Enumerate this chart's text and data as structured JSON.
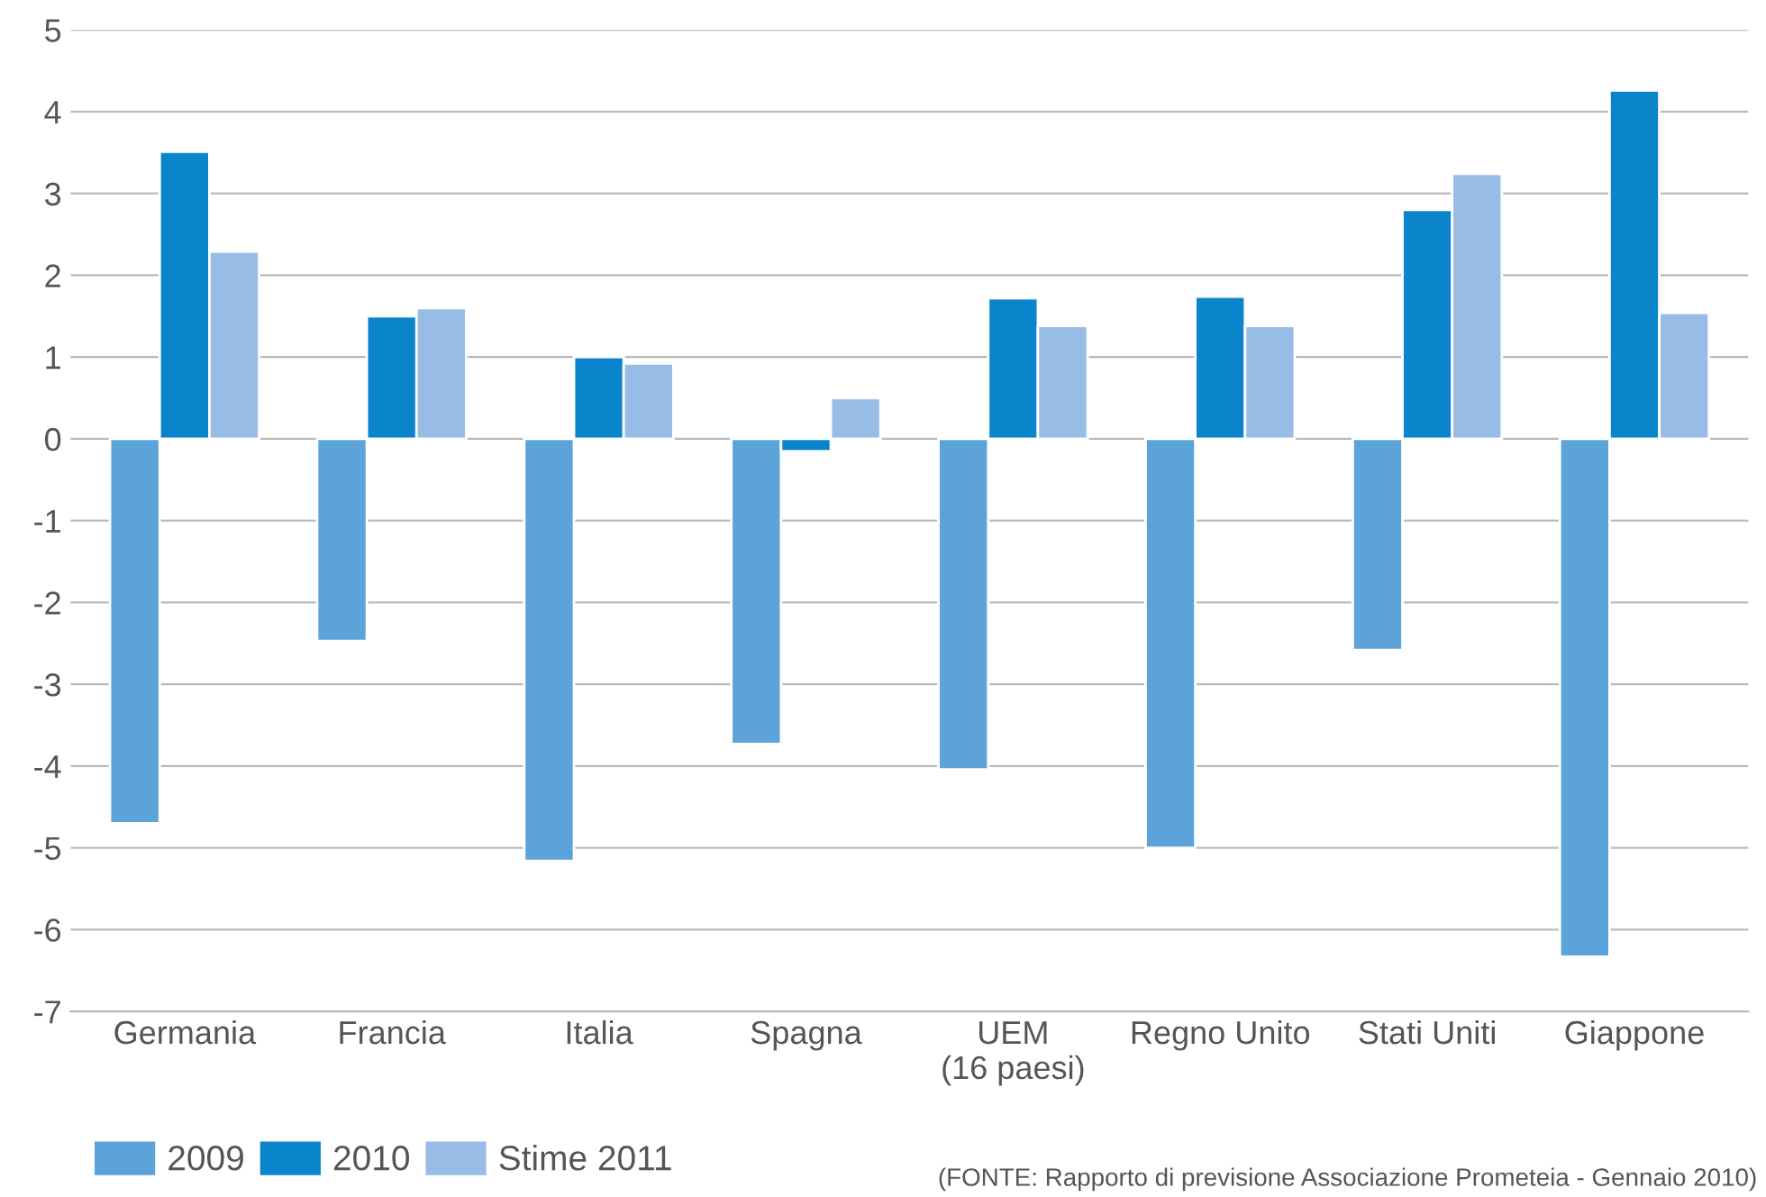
{
  "chart_data": {
    "type": "bar",
    "categories": [
      "Germania",
      "Francia",
      "Italia",
      "Spagna",
      "UEM\n(16 paesi)",
      "Regno Unito",
      "Stati Uniti",
      "Giappone"
    ],
    "series": [
      {
        "name": "2009",
        "color": "#5ba3d9",
        "values": [
          -4.7,
          -2.47,
          -5.16,
          -3.73,
          -4.04,
          -5.0,
          -2.58,
          -6.33
        ]
      },
      {
        "name": "2010",
        "color": "#0a85cc",
        "values": [
          3.51,
          1.5,
          1.0,
          -0.15,
          1.72,
          1.74,
          2.8,
          4.26
        ]
      },
      {
        "name": "Stime 2011",
        "color": "#97bde6",
        "values": [
          2.29,
          1.6,
          0.92,
          0.5,
          1.38,
          1.38,
          3.24,
          1.54
        ]
      }
    ],
    "ylim": [
      -7,
      5
    ],
    "yticks": [
      -7,
      -6,
      -5,
      -4,
      -3,
      -2,
      -1,
      0,
      1,
      2,
      3,
      4,
      5
    ],
    "grid": "y",
    "legend": "bottom left",
    "annotations": [
      "(FONTE: Rapporto di previsione Associazione Prometeia - Gennaio 2010)"
    ]
  }
}
